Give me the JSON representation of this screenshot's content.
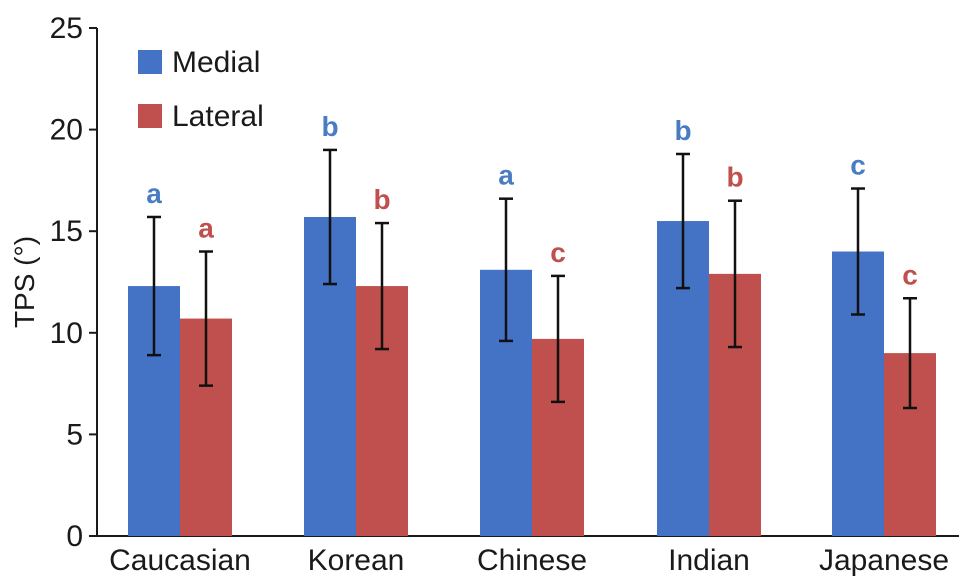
{
  "chart_data": {
    "type": "bar",
    "title": "",
    "xlabel": "",
    "ylabel": "TPS (°)",
    "ylim": [
      0,
      25
    ],
    "yticks": [
      0,
      5,
      10,
      15,
      20,
      25
    ],
    "grid": false,
    "legend_position": "top-left",
    "categories": [
      "Caucasian",
      "Korean",
      "Chinese",
      "Indian",
      "Japanese"
    ],
    "series": [
      {
        "name": "Medial",
        "color": "#4472C4",
        "label_color": "#4A7CC4",
        "values": [
          12.3,
          15.7,
          13.1,
          15.5,
          14.0
        ],
        "error": [
          3.4,
          3.3,
          3.5,
          3.3,
          3.1
        ],
        "significance": [
          "a",
          "b",
          "a",
          "b",
          "c"
        ]
      },
      {
        "name": "Lateral",
        "color": "#C0504D",
        "label_color": "#C0504D",
        "values": [
          10.7,
          12.3,
          9.7,
          12.9,
          9.0
        ],
        "error": [
          3.3,
          3.1,
          3.1,
          3.6,
          2.7
        ],
        "significance": [
          "a",
          "b",
          "c",
          "b",
          "c"
        ]
      }
    ]
  }
}
